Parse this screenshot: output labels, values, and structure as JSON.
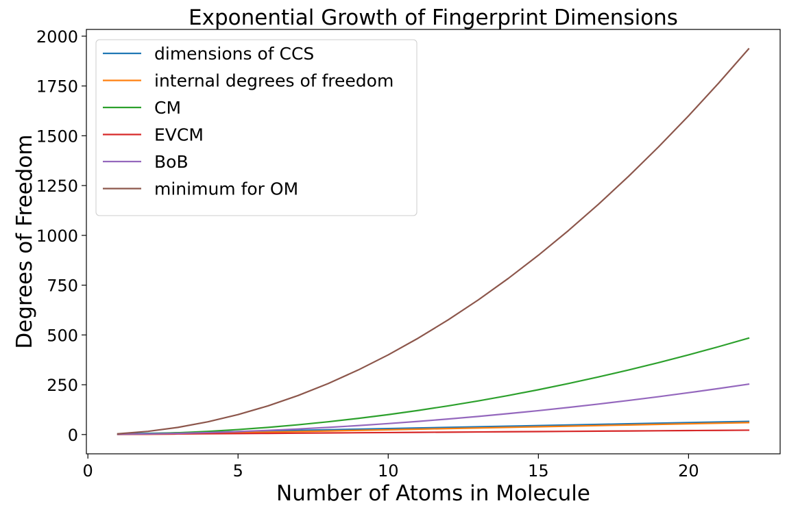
{
  "chart_data": {
    "type": "line",
    "title": "Exponential Growth of Fingerprint Dimensions",
    "xlabel": "Number of Atoms in Molecule",
    "ylabel": "Degrees of Freedom",
    "xlim": [
      -0.05,
      23.05
    ],
    "ylim": [
      -96.8,
      2033.8
    ],
    "x_ticks": [
      0,
      5,
      10,
      15,
      20
    ],
    "y_ticks": [
      0,
      250,
      500,
      750,
      1000,
      1250,
      1500,
      1750,
      2000
    ],
    "x": [
      1,
      2,
      3,
      4,
      5,
      6,
      7,
      8,
      9,
      10,
      11,
      12,
      13,
      14,
      15,
      16,
      17,
      18,
      19,
      20,
      21,
      22
    ],
    "legend_position": "upper-left",
    "grid": false,
    "series": [
      {
        "name": "dimensions of CCS",
        "color": "#1f77b4",
        "values": [
          3,
          6,
          9,
          12,
          15,
          18,
          21,
          24,
          27,
          30,
          33,
          36,
          39,
          42,
          45,
          48,
          51,
          54,
          57,
          60,
          63,
          66
        ]
      },
      {
        "name": "internal degrees of freedom",
        "color": "#ff7f0e",
        "values": [
          0,
          1,
          3,
          6,
          9,
          12,
          15,
          18,
          21,
          24,
          27,
          30,
          33,
          36,
          39,
          42,
          45,
          48,
          51,
          54,
          57,
          60
        ]
      },
      {
        "name": "CM",
        "color": "#2ca02c",
        "values": [
          1,
          4,
          9,
          16,
          25,
          36,
          49,
          64,
          81,
          100,
          121,
          144,
          169,
          196,
          225,
          256,
          289,
          324,
          361,
          400,
          441,
          484
        ]
      },
      {
        "name": "EVCM",
        "color": "#d62728",
        "values": [
          1,
          2,
          3,
          4,
          5,
          6,
          7,
          8,
          9,
          10,
          11,
          12,
          13,
          14,
          15,
          16,
          17,
          18,
          19,
          20,
          21,
          22
        ]
      },
      {
        "name": "BoB",
        "color": "#9467bd",
        "values": [
          1,
          3,
          6,
          10,
          15,
          21,
          28,
          36,
          45,
          55,
          66,
          78,
          91,
          105,
          120,
          136,
          153,
          171,
          190,
          210,
          231,
          253
        ]
      },
      {
        "name": "minimum for OM",
        "color": "#8c564b",
        "values": [
          4,
          16,
          36,
          64,
          100,
          144,
          196,
          256,
          324,
          400,
          484,
          576,
          676,
          784,
          900,
          1024,
          1156,
          1296,
          1444,
          1600,
          1764,
          1936
        ]
      }
    ]
  }
}
